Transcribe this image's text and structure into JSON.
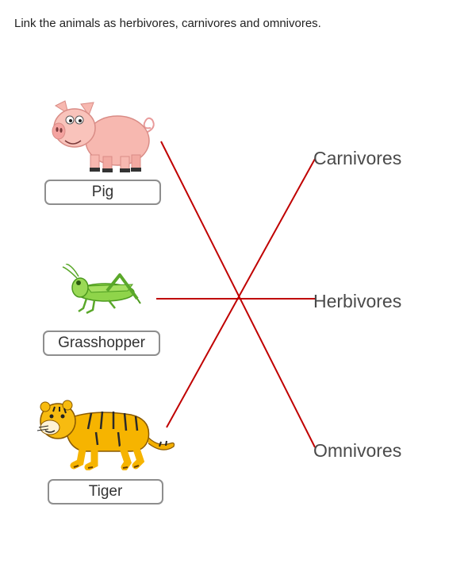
{
  "instruction": "Link the animals as herbivores, carnivores and omnivores.",
  "animals": [
    {
      "label": "Pig",
      "icon": "pig-icon"
    },
    {
      "label": "Grasshopper",
      "icon": "grasshopper-icon"
    },
    {
      "label": "Tiger",
      "icon": "tiger-icon"
    }
  ],
  "categories": [
    {
      "label": "Carnivores"
    },
    {
      "label": "Herbivores"
    },
    {
      "label": "Omnivores"
    }
  ],
  "links": [
    {
      "from": "Pig",
      "to": "Omnivores"
    },
    {
      "from": "Grasshopper",
      "to": "Herbivores"
    },
    {
      "from": "Tiger",
      "to": "Carnivores"
    }
  ],
  "colors": {
    "link_line": "#c00000",
    "label_border": "#8e8e8e"
  }
}
